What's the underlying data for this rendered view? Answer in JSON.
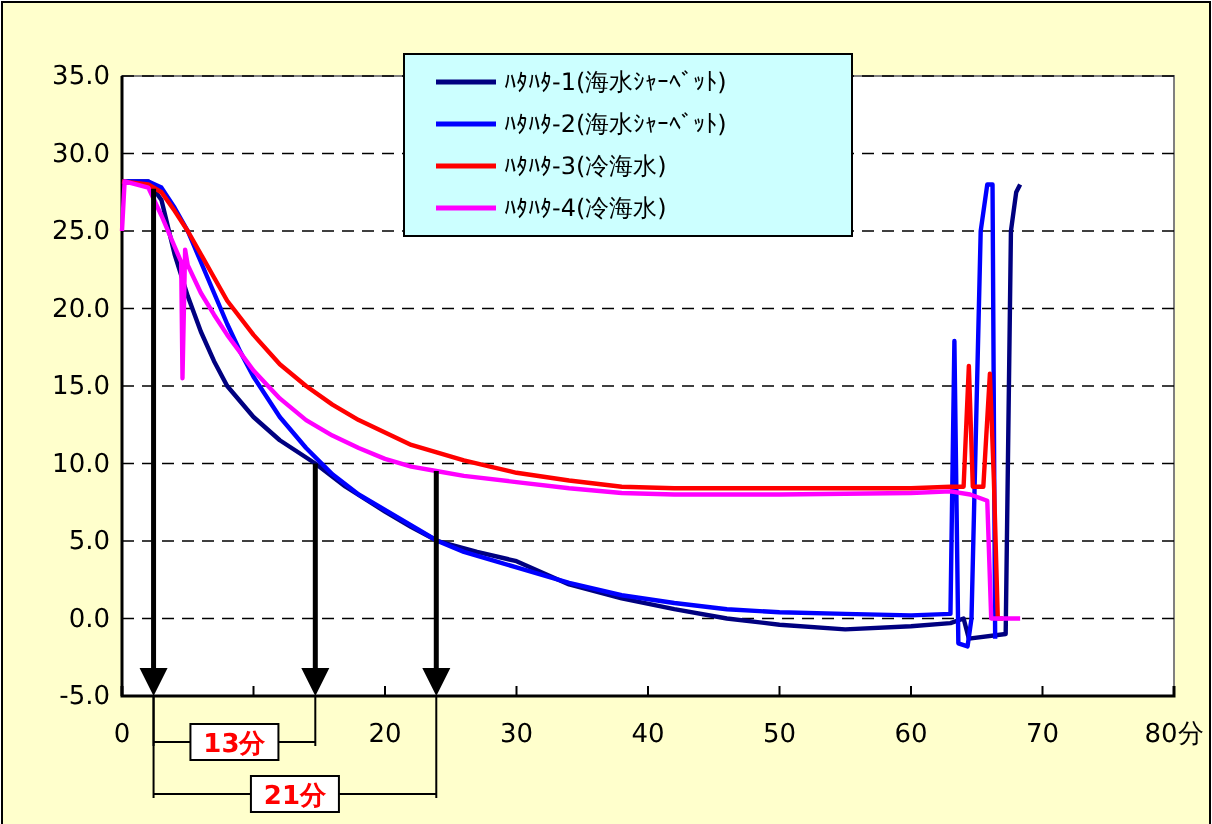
{
  "chart_data": {
    "type": "line",
    "xlim": [
      0,
      80
    ],
    "ylim": [
      -5,
      35
    ],
    "xticks": [
      0,
      {
        "value": 10,
        "label": null
      },
      20,
      30,
      40,
      50,
      60,
      70,
      {
        "value": 80,
        "label": "80分"
      }
    ],
    "yticks": [
      {
        "value": -5,
        "label": "-5.0"
      },
      {
        "value": 0,
        "label": "0.0"
      },
      {
        "value": 5,
        "label": "5.0"
      },
      {
        "value": 10,
        "label": "10.0"
      },
      {
        "value": 15,
        "label": "15.0"
      },
      {
        "value": 20,
        "label": "20.0"
      },
      {
        "value": 25,
        "label": "25.0"
      },
      {
        "value": 30,
        "label": "30.0"
      },
      {
        "value": 35,
        "label": "35.0"
      }
    ],
    "grid": "y",
    "legend": "top",
    "marker": "none",
    "line_style": "solid",
    "ref_lines": [
      {
        "axis": "x",
        "value": 2.4
      },
      {
        "axis": "x",
        "value": 14.7
      },
      {
        "axis": "x",
        "value": 23.9
      }
    ],
    "annotations": [
      "13分",
      "21分"
    ],
    "series": [
      {
        "name": "ﾊﾀﾊﾀ-1(海水ｼｬｰﾍﾞｯﾄ)",
        "color": "#000080",
        "x": [
          0,
          2,
          3,
          4,
          5,
          6,
          7,
          8,
          10,
          12,
          14.7,
          17,
          20,
          22,
          24,
          27,
          30,
          34,
          38,
          42,
          46,
          50,
          55,
          60,
          63,
          64,
          64.4,
          67.2,
          67.6,
          68,
          68.3
        ],
        "values": [
          28.2,
          28.2,
          27,
          23.5,
          20.8,
          18.5,
          16.6,
          15,
          13,
          11.5,
          10,
          8.5,
          6.9,
          5.9,
          5,
          4.3,
          3.7,
          2.2,
          1.3,
          0.6,
          0,
          -0.4,
          -0.7,
          -0.5,
          -0.3,
          0,
          -1.3,
          -1,
          25,
          27.5,
          28
        ]
      },
      {
        "name": "ﾊﾀﾊﾀ-2(海水ｼｬｰﾍﾞｯﾄ)",
        "color": "#0000ff",
        "x": [
          0,
          2,
          3,
          4,
          5,
          6,
          7,
          8,
          9,
          10,
          12,
          14,
          16,
          18,
          20,
          22,
          24,
          26,
          28,
          30,
          34,
          38,
          42,
          46,
          50,
          55,
          60,
          63,
          63.3,
          63.6,
          64.3,
          64.6,
          65.3,
          65.8,
          66.2,
          66.4
        ],
        "values": [
          28.2,
          28.2,
          27.8,
          26.5,
          25,
          23,
          21,
          19,
          17.2,
          15.6,
          13,
          11,
          9.3,
          8,
          7,
          6,
          5,
          4.3,
          3.8,
          3.3,
          2.3,
          1.5,
          1,
          0.6,
          0.4,
          0.3,
          0.2,
          0.3,
          17.9,
          -1.6,
          -1.8,
          0,
          25,
          28,
          28,
          -1.3
        ]
      },
      {
        "name": "ﾊﾀﾊﾀ-3(冷海水)",
        "color": "#ff0000",
        "x": [
          0,
          2,
          3,
          4,
          5,
          6,
          7,
          8,
          10,
          12,
          14,
          16,
          18,
          20,
          22,
          24,
          26,
          28,
          30,
          34,
          38,
          42,
          50,
          56,
          60,
          63,
          64,
          64.4,
          64.7,
          65.5,
          66,
          66.3,
          66.6,
          67
        ],
        "values": [
          28.2,
          28,
          27.5,
          26.3,
          25,
          23.5,
          22,
          20.5,
          18.3,
          16.4,
          15,
          13.8,
          12.8,
          12,
          11.2,
          10.7,
          10.2,
          9.8,
          9.4,
          8.9,
          8.5,
          8.4,
          8.4,
          8.4,
          8.4,
          8.5,
          8.5,
          16.3,
          8.5,
          8.5,
          15.8,
          9,
          0,
          0
        ]
      },
      {
        "name": "ﾊﾀﾊﾀ-4(冷海水)",
        "color": "#ff00ff",
        "x": [
          0,
          0.2,
          2,
          3,
          4,
          4.5,
          4.6,
          4.8,
          5,
          6,
          7,
          8,
          10,
          12,
          14,
          16,
          18,
          20,
          22,
          24,
          26,
          30,
          34,
          38,
          42,
          50,
          60,
          63,
          64.5,
          65.8,
          66.1,
          68.3
        ],
        "values": [
          25,
          28.2,
          27.8,
          26,
          24,
          23,
          15.5,
          23.8,
          22.8,
          21,
          19.6,
          18.3,
          16,
          14.2,
          12.8,
          11.8,
          11,
          10.3,
          9.8,
          9.5,
          9.2,
          8.8,
          8.4,
          8.1,
          8,
          8,
          8.1,
          8.2,
          8,
          7.6,
          0,
          0
        ]
      }
    ]
  }
}
